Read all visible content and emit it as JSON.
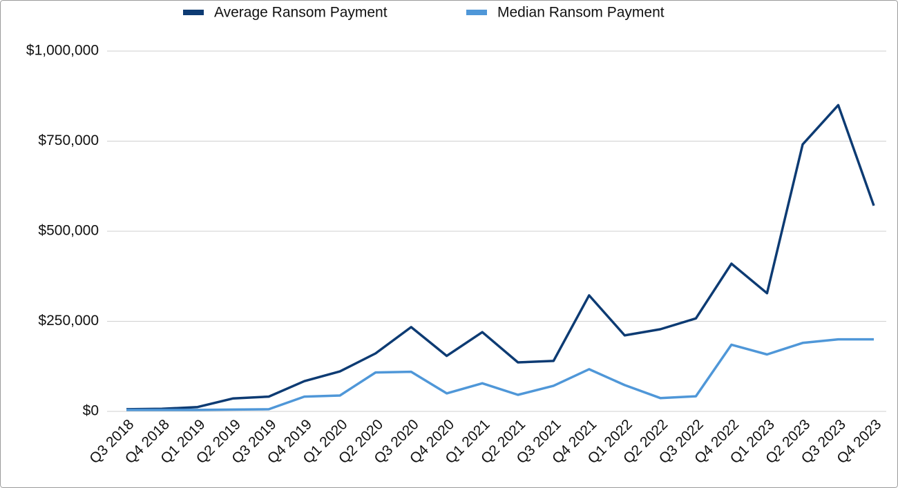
{
  "chart_data": {
    "type": "line",
    "categories": [
      "Q3 2018",
      "Q4 2018",
      "Q1 2019",
      "Q2 2019",
      "Q3 2019",
      "Q4 2019",
      "Q1 2020",
      "Q2 2020",
      "Q3 2020",
      "Q4 2020",
      "Q1 2021",
      "Q2 2021",
      "Q3 2021",
      "Q4 2021",
      "Q1 2022",
      "Q2 2022",
      "Q3 2022",
      "Q4 2022",
      "Q1 2023",
      "Q2 2023",
      "Q3 2023",
      "Q4 2023"
    ],
    "series": [
      {
        "name": "Average Ransom Payment",
        "color": "#0d3b73",
        "values": [
          6000,
          7000,
          12000,
          36000,
          41000,
          84000,
          111000,
          161000,
          234000,
          154000,
          220000,
          136000,
          140000,
          322000,
          211000,
          228000,
          258000,
          410000,
          328000,
          741000,
          850000,
          571000
        ]
      },
      {
        "name": "Median Ransom Payment",
        "color": "#4f97d8",
        "values": [
          4000,
          4000,
          4000,
          5000,
          6000,
          41000,
          44000,
          108000,
          110000,
          50000,
          78000,
          46000,
          71000,
          117000,
          73000,
          37000,
          42000,
          185000,
          158000,
          190000,
          200000,
          200000
        ]
      }
    ],
    "ylim": [
      0,
      1000000
    ],
    "yticks": [
      {
        "value": 0,
        "label": "$0"
      },
      {
        "value": 250000,
        "label": "$250,000"
      },
      {
        "value": 500000,
        "label": "$500,000"
      },
      {
        "value": 750000,
        "label": "$750,000"
      },
      {
        "value": 1000000,
        "label": "$1,000,000"
      }
    ],
    "grid": true,
    "legend": "top"
  }
}
